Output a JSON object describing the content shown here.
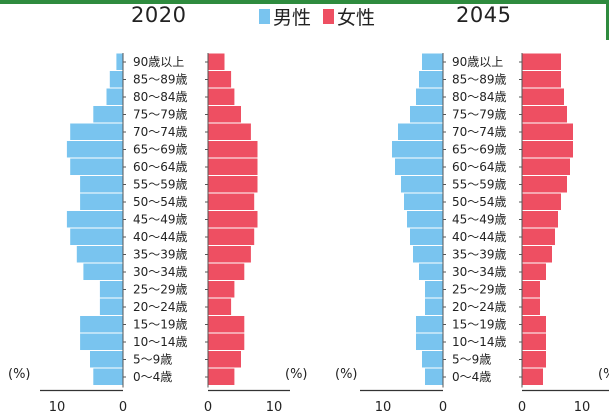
{
  "legend": {
    "male": "男性",
    "female": "女性"
  },
  "colors": {
    "male": "#79c4ef",
    "female": "#ee4f62"
  },
  "chart_data": [
    {
      "type": "bar",
      "title": "2020",
      "unit_label": "(%)",
      "categories": [
        "90歳以上",
        "85～89歳",
        "80～84歳",
        "75～79歳",
        "70～74歳",
        "65～69歳",
        "60～64歳",
        "55～59歳",
        "50～54歳",
        "45～49歳",
        "40～44歳",
        "35～39歳",
        "30～34歳",
        "25～29歳",
        "20～24歳",
        "15～19歳",
        "10～14歳",
        "5～9歳",
        "0～4歳"
      ],
      "series": [
        {
          "name": "男性",
          "values": [
            1.0,
            2.0,
            2.5,
            4.5,
            8.0,
            8.5,
            8.0,
            6.5,
            6.5,
            8.5,
            8.0,
            7.0,
            6.0,
            3.5,
            3.5,
            6.5,
            6.5,
            5.0,
            4.5
          ]
        },
        {
          "name": "女性",
          "values": [
            2.5,
            3.5,
            4.0,
            5.0,
            6.5,
            7.5,
            7.5,
            7.5,
            7.0,
            7.5,
            7.0,
            6.5,
            5.5,
            4.0,
            3.5,
            5.5,
            5.5,
            5.0,
            4.0
          ]
        }
      ],
      "x_ticks": [
        "10",
        "0",
        "0",
        "10"
      ],
      "xlim": [
        0,
        12
      ]
    },
    {
      "type": "bar",
      "title": "2045",
      "unit_label": "(%)",
      "unit_label_right": "(%",
      "categories": [
        "90歳以上",
        "85～89歳",
        "80～84歳",
        "75～79歳",
        "70～74歳",
        "65～69歳",
        "60～64歳",
        "55～59歳",
        "50～54歳",
        "45～49歳",
        "40～44歳",
        "35～39歳",
        "30～34歳",
        "25～29歳",
        "20～24歳",
        "15～19歳",
        "10～14歳",
        "5～9歳",
        "0～4歳"
      ],
      "series": [
        {
          "name": "男性",
          "values": [
            3.5,
            4.0,
            4.5,
            5.5,
            7.5,
            8.5,
            8.0,
            7.0,
            6.5,
            6.0,
            5.5,
            5.0,
            4.0,
            3.0,
            3.0,
            4.5,
            4.5,
            3.5,
            3.0
          ]
        },
        {
          "name": "女性",
          "values": [
            6.5,
            6.5,
            7.0,
            7.5,
            8.5,
            8.5,
            8.0,
            7.5,
            6.5,
            6.0,
            5.5,
            5.0,
            4.0,
            3.0,
            3.0,
            4.0,
            4.0,
            4.0,
            3.5
          ]
        }
      ],
      "x_ticks": [
        "10",
        "0",
        "0",
        "10"
      ],
      "xlim": [
        0,
        12
      ]
    }
  ]
}
